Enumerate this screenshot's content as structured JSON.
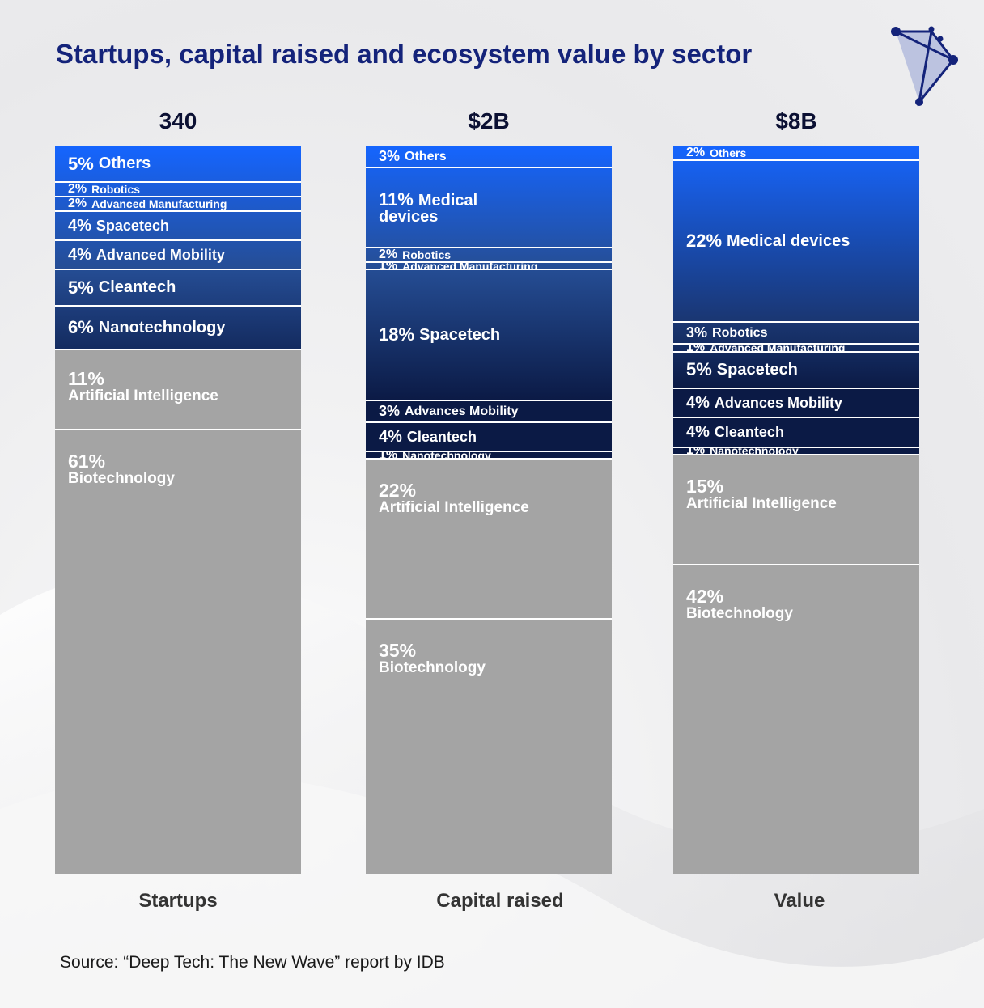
{
  "title": "Startups, capital raised and ecosystem value by sector",
  "source": "Source: “Deep Tech: The New Wave” report by IDB",
  "colors": {
    "title": "#14237a",
    "blue_top": "#1565ff",
    "navy_bottom": "#0b1a45",
    "grey": "#a4a4a4"
  },
  "chart_data": {
    "type": "bar",
    "stacked": true,
    "percent": true,
    "title": "Startups, capital raised and ecosystem value by sector",
    "categories": [
      "Startups",
      "Capital raised",
      "Value"
    ],
    "totals": [
      "340",
      "$2B",
      "$8B"
    ],
    "columns": [
      {
        "label": "Startups",
        "total": "340",
        "segments": [
          {
            "pct": "5%",
            "name": "Others",
            "value": 5,
            "tone": "blue"
          },
          {
            "pct": "2%",
            "name": "Robotics",
            "value": 2,
            "tone": "blue"
          },
          {
            "pct": "2%",
            "name": "Advanced Manufacturing",
            "value": 2,
            "tone": "blue"
          },
          {
            "pct": "4%",
            "name": "Spacetech",
            "value": 4,
            "tone": "blue"
          },
          {
            "pct": "4%",
            "name": "Advanced Mobility",
            "value": 4,
            "tone": "blue"
          },
          {
            "pct": "5%",
            "name": "Cleantech",
            "value": 5,
            "tone": "blue"
          },
          {
            "pct": "6%",
            "name": "Nanotechnology",
            "value": 6,
            "tone": "blue"
          },
          {
            "pct": "11%",
            "name": "Artificial Intelligence",
            "value": 11,
            "tone": "grey"
          },
          {
            "pct": "61%",
            "name": "Biotechnology",
            "value": 61,
            "tone": "grey"
          }
        ]
      },
      {
        "label": "Capital raised",
        "total": "$2B",
        "segments": [
          {
            "pct": "3%",
            "name": "Others",
            "value": 3,
            "tone": "blue"
          },
          {
            "pct": "11%",
            "name": "Medical devices",
            "value": 11,
            "tone": "blue",
            "wrap": true
          },
          {
            "pct": "2%",
            "name": "Robotics",
            "value": 2,
            "tone": "blue"
          },
          {
            "pct": "1%",
            "name": "Advanced Manufacturing",
            "value": 1,
            "tone": "blue"
          },
          {
            "pct": "18%",
            "name": "Spacetech",
            "value": 18,
            "tone": "blue"
          },
          {
            "pct": "3%",
            "name": "Advances Mobility",
            "value": 3,
            "tone": "blue"
          },
          {
            "pct": "4%",
            "name": "Cleantech",
            "value": 4,
            "tone": "blue"
          },
          {
            "pct": "1%",
            "name": "Nanotechnology",
            "value": 1,
            "tone": "blue"
          },
          {
            "pct": "22%",
            "name": "Artificial Intelligence",
            "value": 22,
            "tone": "grey"
          },
          {
            "pct": "35%",
            "name": "Biotechnology",
            "value": 35,
            "tone": "grey"
          }
        ]
      },
      {
        "label": "Value",
        "total": "$8B",
        "segments": [
          {
            "pct": "2%",
            "name": "Others",
            "value": 2,
            "tone": "blue"
          },
          {
            "pct": "22%",
            "name": "Medical devices",
            "value": 22,
            "tone": "blue"
          },
          {
            "pct": "3%",
            "name": "Robotics",
            "value": 3,
            "tone": "blue"
          },
          {
            "pct": "1%",
            "name": "Advanced Manufacturing",
            "value": 1,
            "tone": "blue"
          },
          {
            "pct": "5%",
            "name": "Spacetech",
            "value": 5,
            "tone": "blue"
          },
          {
            "pct": "4%",
            "name": "Advances Mobility",
            "value": 4,
            "tone": "blue"
          },
          {
            "pct": "4%",
            "name": "Cleantech",
            "value": 4,
            "tone": "blue"
          },
          {
            "pct": "1%",
            "name": "Nanotechnology",
            "value": 1,
            "tone": "blue"
          },
          {
            "pct": "15%",
            "name": "Artificial Intelligence",
            "value": 15,
            "tone": "grey"
          },
          {
            "pct": "42%",
            "name": "Biotechnology",
            "value": 42,
            "tone": "grey"
          }
        ]
      }
    ]
  }
}
